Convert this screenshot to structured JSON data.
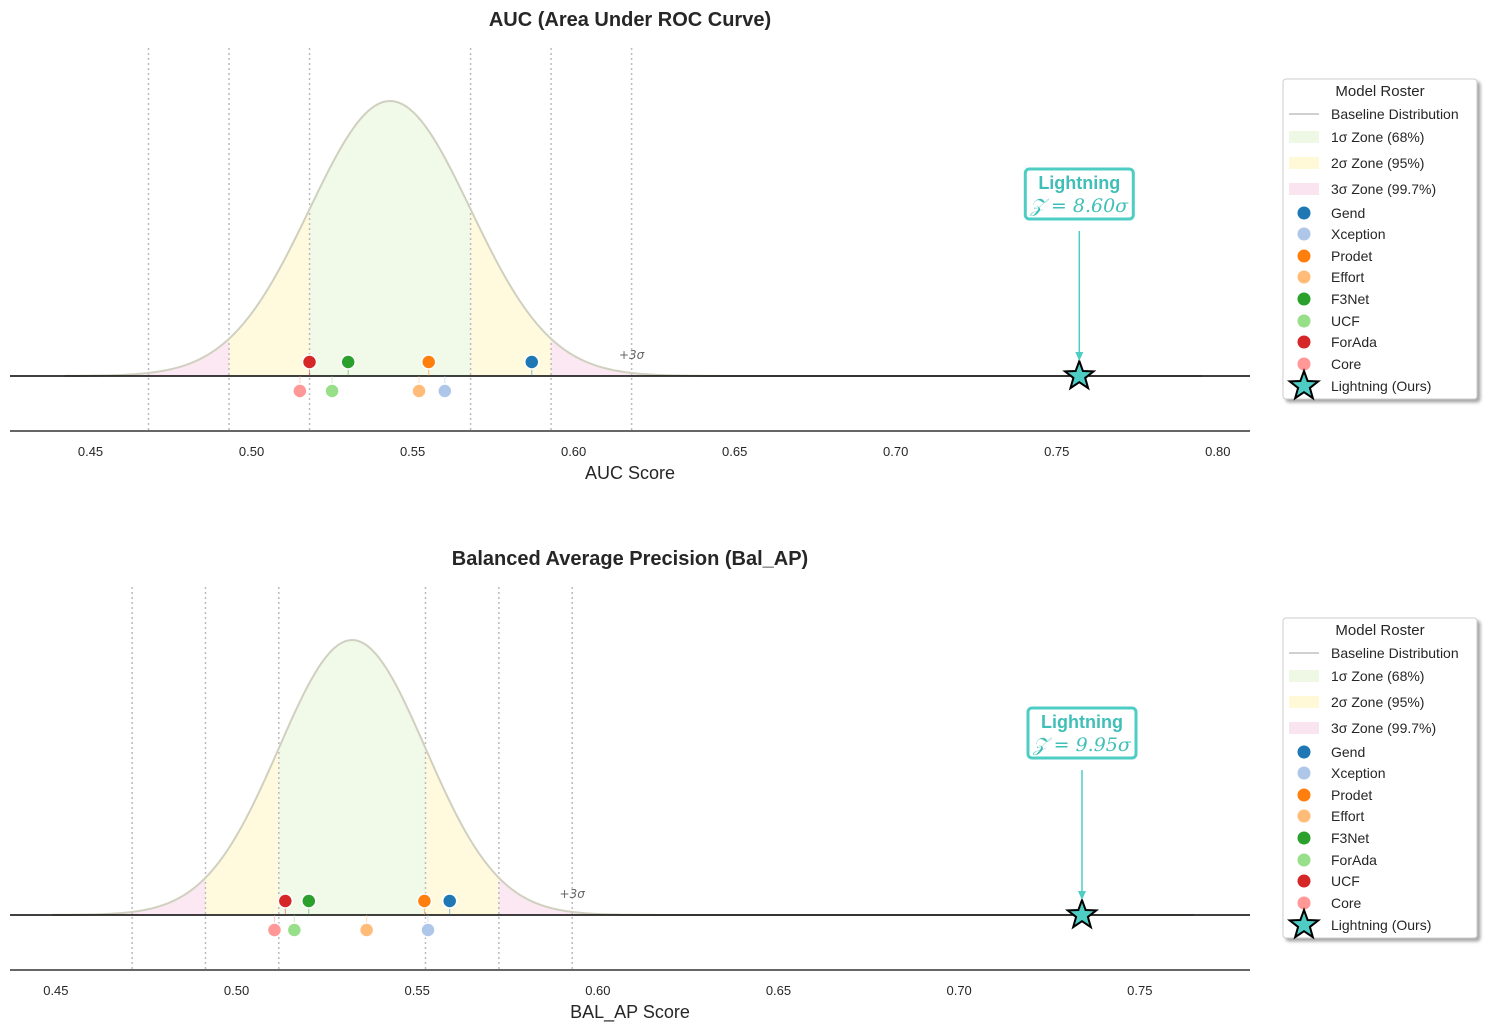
{
  "accent": "#4ecdc4",
  "zone_colors": {
    "one": "#e8f5d8",
    "two": "#fff6c8",
    "three": "#f8d8ea"
  },
  "chart_data": [
    {
      "type": "scatter",
      "title": "AUC (Area Under ROC Curve)",
      "xlabel": "AUC Score",
      "xlim": [
        0.425,
        0.81
      ],
      "ticks": [
        0.45,
        0.5,
        0.55,
        0.6,
        0.65,
        0.7,
        0.75,
        0.8
      ],
      "tick_labels": [
        "0.45",
        "0.50",
        "0.55",
        "0.60",
        "0.65",
        "0.70",
        "0.75",
        "0.80"
      ],
      "baseline": {
        "mean": 0.543,
        "std": 0.025,
        "range": [
          0.442,
          0.795
        ]
      },
      "sigma_label": "+3σ",
      "models": [
        {
          "name": "Gend",
          "value": 0.587,
          "color": "#1f77b4",
          "row": "upper"
        },
        {
          "name": "Xception",
          "value": 0.56,
          "color": "#aec7e8",
          "row": "lower"
        },
        {
          "name": "Prodet",
          "value": 0.555,
          "color": "#ff7f0e",
          "row": "upper"
        },
        {
          "name": "Effort",
          "value": 0.552,
          "color": "#ffbb78",
          "row": "lower"
        },
        {
          "name": "F3Net",
          "value": 0.53,
          "color": "#2ca02c",
          "row": "upper"
        },
        {
          "name": "UCF",
          "value": 0.525,
          "color": "#98df8a",
          "row": "lower"
        },
        {
          "name": "ForAda",
          "value": 0.518,
          "color": "#d62728",
          "row": "upper"
        },
        {
          "name": "Core",
          "value": 0.515,
          "color": "#ff9896",
          "row": "lower"
        }
      ],
      "ours": {
        "name": "Lightning",
        "value": 0.757,
        "z_text": "𝒵 = 8.60σ"
      },
      "legend": {
        "title": "Model Roster",
        "entries": [
          "Baseline Distribution",
          "1σ Zone (68%)",
          "2σ Zone (95%)",
          "3σ Zone (99.7%)",
          "Gend",
          "Xception",
          "Prodet",
          "Effort",
          "F3Net",
          "UCF",
          "ForAda",
          "Core",
          "Lightning (Ours)"
        ]
      }
    },
    {
      "type": "scatter",
      "title": "Balanced Average Precision (Bal_AP)",
      "xlabel": "BAL_AP Score",
      "xlim": [
        0.4373,
        0.7805
      ],
      "ticks": [
        0.45,
        0.5,
        0.55,
        0.6,
        0.65,
        0.7,
        0.75
      ],
      "tick_labels": [
        "0.45",
        "0.50",
        "0.55",
        "0.60",
        "0.65",
        "0.70",
        "0.75"
      ],
      "baseline": {
        "mean": 0.532,
        "std": 0.0203,
        "range": [
          0.449,
          0.765
        ]
      },
      "sigma_label": "+3σ",
      "models": [
        {
          "name": "Gend",
          "value": 0.559,
          "color": "#1f77b4",
          "row": "upper"
        },
        {
          "name": "Xception",
          "value": 0.553,
          "color": "#aec7e8",
          "row": "lower"
        },
        {
          "name": "Prodet",
          "value": 0.552,
          "color": "#ff7f0e",
          "row": "upper"
        },
        {
          "name": "Effort",
          "value": 0.536,
          "color": "#ffbb78",
          "row": "lower"
        },
        {
          "name": "F3Net",
          "value": 0.52,
          "color": "#2ca02c",
          "row": "upper"
        },
        {
          "name": "ForAda",
          "value": 0.516,
          "color": "#98df8a",
          "row": "lower"
        },
        {
          "name": "UCF",
          "value": 0.5135,
          "color": "#d62728",
          "row": "upper"
        },
        {
          "name": "Core",
          "value": 0.5105,
          "color": "#ff9896",
          "row": "lower"
        }
      ],
      "ours": {
        "name": "Lightning",
        "value": 0.734,
        "z_text": "𝒵 = 9.95σ"
      },
      "legend": {
        "title": "Model Roster",
        "entries": [
          "Baseline Distribution",
          "1σ Zone (68%)",
          "2σ Zone (95%)",
          "3σ Zone (99.7%)",
          "Gend",
          "Xception",
          "Prodet",
          "Effort",
          "F3Net",
          "ForAda",
          "UCF",
          "Core",
          "Lightning (Ours)"
        ]
      }
    }
  ]
}
